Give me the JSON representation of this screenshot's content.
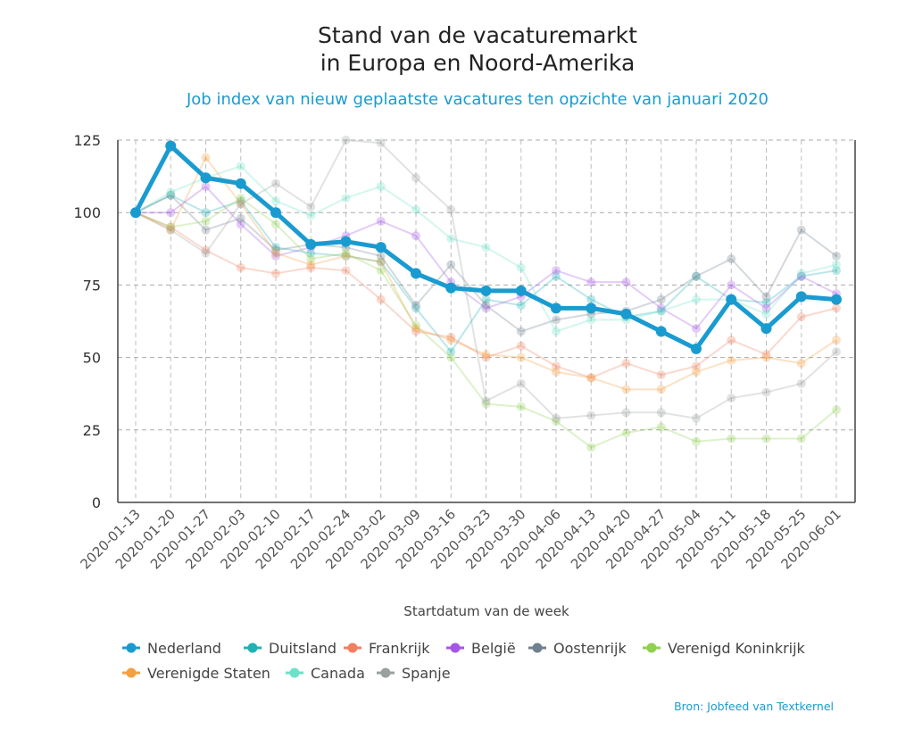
{
  "chart_data": {
    "type": "line",
    "title_lines": [
      "Stand van de vacaturemarkt",
      "in Europa en Noord-Amerika"
    ],
    "subtitle": "Job index van nieuw geplaatste vacatures ten opzichte van januari 2020",
    "xlabel": "Startdatum van de week",
    "ylabel": "",
    "ylim": [
      0,
      125
    ],
    "yticks": [
      0,
      25,
      50,
      75,
      100,
      125
    ],
    "grid": true,
    "legend_position": "bottom",
    "source": "Bron: Jobfeed van Textkernel",
    "categories": [
      "2020-01-13",
      "2020-01-20",
      "2020-01-27",
      "2020-02-03",
      "2020-02-10",
      "2020-02-17",
      "2020-02-24",
      "2020-03-02",
      "2020-03-09",
      "2020-03-16",
      "2020-03-23",
      "2020-03-30",
      "2020-04-06",
      "2020-04-13",
      "2020-04-20",
      "2020-04-27",
      "2020-05-04",
      "2020-05-11",
      "2020-05-18",
      "2020-05-25",
      "2020-06-01"
    ],
    "series": [
      {
        "name": "Nederland",
        "color": "#1a9bd0",
        "highlight": true,
        "values": [
          100,
          123,
          112,
          110,
          100,
          89,
          90,
          88,
          79,
          74,
          73,
          73,
          67,
          67,
          65,
          59,
          53,
          70,
          60,
          71,
          70
        ]
      },
      {
        "name": "Duitsland",
        "color": "#1fb2b5",
        "values": [
          100,
          106,
          100,
          104,
          88,
          86,
          85,
          83,
          67,
          52,
          70,
          68,
          78,
          70,
          64,
          66,
          78,
          70,
          69,
          78,
          80
        ]
      },
      {
        "name": "Frankrijk",
        "color": "#f08060",
        "values": [
          100,
          95,
          87,
          81,
          79,
          81,
          80,
          70,
          59,
          57,
          50,
          54,
          47,
          43,
          48,
          44,
          47,
          56,
          51,
          64,
          67
        ]
      },
      {
        "name": "België",
        "color": "#a555e8",
        "values": [
          100,
          100,
          109,
          96,
          85,
          88,
          92,
          97,
          92,
          76,
          67,
          71,
          80,
          76,
          76,
          67,
          60,
          75,
          67,
          78,
          72
        ]
      },
      {
        "name": "Oostenrijk",
        "color": "#708090",
        "values": [
          100,
          106,
          94,
          98,
          87,
          89,
          88,
          85,
          68,
          82,
          68,
          59,
          63,
          65,
          66,
          70,
          78,
          84,
          71,
          94,
          85
        ]
      },
      {
        "name": "Verenigd Koninkrijk",
        "color": "#8fd14f",
        "values": [
          100,
          95,
          97,
          105,
          96,
          84,
          86,
          80,
          61,
          50,
          34,
          33,
          28,
          19,
          24,
          26,
          21,
          22,
          22,
          22,
          32
        ]
      },
      {
        "name": "Verenigde Staten",
        "color": "#f5a040",
        "values": [
          100,
          94,
          119,
          103,
          86,
          82,
          85,
          83,
          60,
          56,
          51,
          50,
          45,
          43,
          39,
          39,
          45,
          49,
          50,
          48,
          56
        ]
      },
      {
        "name": "Canada",
        "color": "#6de0c8",
        "values": [
          100,
          107,
          112,
          116,
          104,
          99,
          105,
          109,
          101,
          91,
          88,
          81,
          59,
          63,
          63,
          66,
          70,
          70,
          65,
          79,
          82
        ]
      },
      {
        "name": "Spanje",
        "color": "#9aa0a0",
        "values": [
          100,
          94,
          86,
          103,
          110,
          102,
          125,
          124,
          112,
          101,
          35,
          41,
          29,
          30,
          31,
          31,
          29,
          36,
          38,
          41,
          52
        ]
      }
    ]
  }
}
